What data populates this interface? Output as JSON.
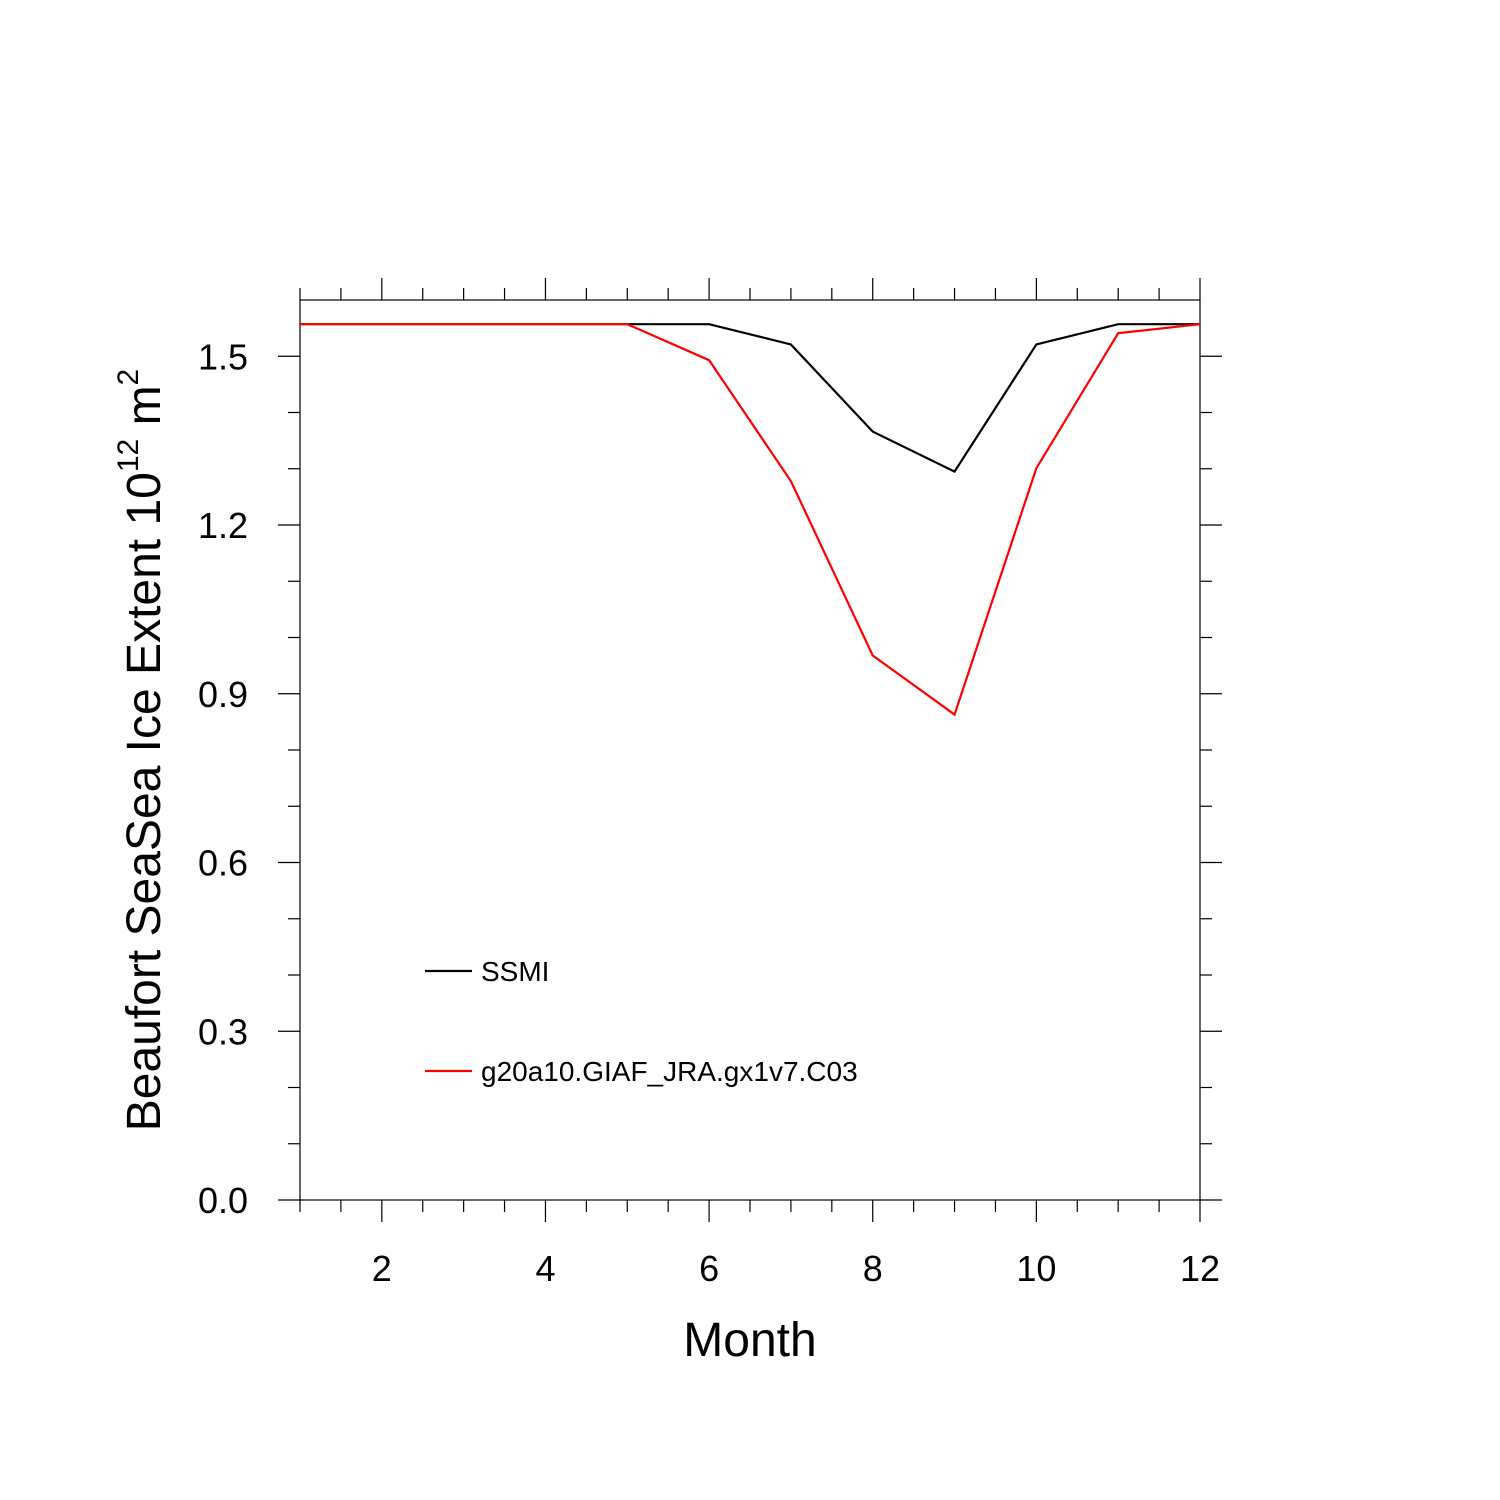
{
  "chart_data": {
    "type": "line",
    "title": "",
    "xlabel": "Month",
    "ylabel_main": "Beaufort SeaSea Ice Extent 10",
    "ylabel_sup": "12",
    "ylabel_unit": " m",
    "ylabel_unit_sup": "2",
    "xlim": [
      1,
      12
    ],
    "ylim": [
      0.0,
      1.6
    ],
    "xticks": [
      2,
      4,
      6,
      8,
      10,
      12
    ],
    "xtick_labels": [
      "2",
      "4",
      "6",
      "8",
      "10",
      "12"
    ],
    "yticks": [
      0.0,
      0.3,
      0.6,
      0.9,
      1.2,
      1.5
    ],
    "ytick_labels": [
      "0.0",
      "0.3",
      "0.6",
      "0.9",
      "1.2",
      "1.5"
    ],
    "x_minor_step": 0.5,
    "y_minor_step": 0.1,
    "grid": false,
    "legend_position": "bottom-left inside",
    "x": [
      1,
      2,
      3,
      4,
      5,
      6,
      7,
      8,
      9,
      10,
      11,
      12
    ],
    "series": [
      {
        "name": "SSMI",
        "color": "#000000",
        "values": [
          1.557,
          1.557,
          1.557,
          1.557,
          1.557,
          1.557,
          1.521,
          1.366,
          1.295,
          1.521,
          1.557,
          1.557
        ]
      },
      {
        "name": "g20a10.GIAF_JRA.gx1v7.C03",
        "color": "#ff0000",
        "values": [
          1.557,
          1.557,
          1.557,
          1.557,
          1.557,
          1.493,
          1.278,
          0.968,
          0.863,
          1.301,
          1.541,
          1.557
        ]
      }
    ]
  }
}
